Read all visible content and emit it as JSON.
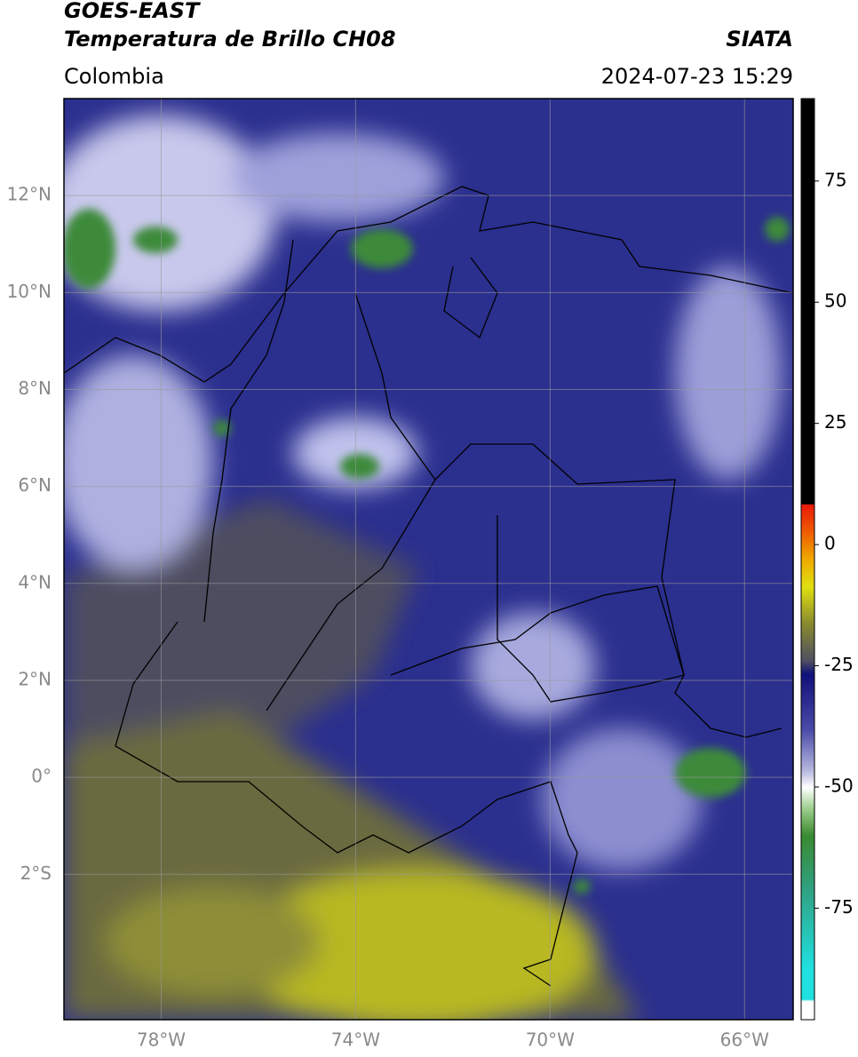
{
  "header": {
    "title": "GOES-EAST",
    "subtitle": "Temperatura de Brillo CH08",
    "source": "SIATA",
    "region": "Colombia",
    "timestamp": "2024-07-23 15:29"
  },
  "map": {
    "xlim": [
      -80,
      -65
    ],
    "ylim": [
      -5,
      14
    ],
    "xticks": [
      {
        "value": -78,
        "label": "78°W"
      },
      {
        "value": -74,
        "label": "74°W"
      },
      {
        "value": -70,
        "label": "70°W"
      },
      {
        "value": -66,
        "label": "66°W"
      }
    ],
    "yticks": [
      {
        "value": 12,
        "label": "12°N"
      },
      {
        "value": 10,
        "label": "10°N"
      },
      {
        "value": 8,
        "label": "8°N"
      },
      {
        "value": 6,
        "label": "6°N"
      },
      {
        "value": 4,
        "label": "4°N"
      },
      {
        "value": 2,
        "label": "2°N"
      },
      {
        "value": 0,
        "label": "0°"
      },
      {
        "value": -2,
        "label": "2°S"
      }
    ],
    "grid": true
  },
  "colorbar": {
    "lim": [
      -98,
      92
    ],
    "ticks": [
      75,
      50,
      25,
      0,
      -25,
      -50,
      -75
    ]
  }
}
